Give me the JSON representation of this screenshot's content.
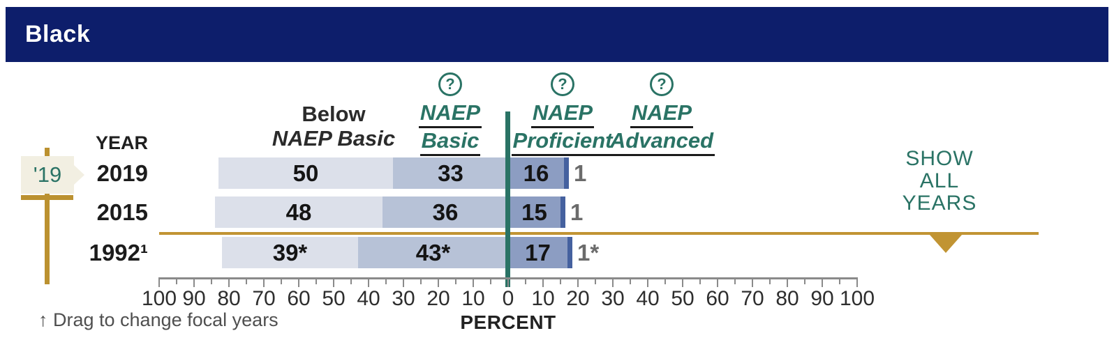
{
  "header": {
    "title": "Black"
  },
  "colors": {
    "header_navy": "#0d1e6b",
    "teal_accent": "#2a7365",
    "gold_accent": "#c19433",
    "flag_cream": "#f2efe2",
    "below_basic_bar": "#dce0ea",
    "basic_bar": "#b7c2d7",
    "proficient_bar": "#8c9dc2",
    "advanced_bar": "#45619f",
    "muted_value_text": "#6b6b6b"
  },
  "columns": {
    "year_label": "YEAR",
    "help_glyph": "?",
    "below": {
      "line1": "Below",
      "line2": "NAEP Basic"
    },
    "levels": [
      {
        "line1": "NAEP",
        "line2": "Basic"
      },
      {
        "line1": "NAEP",
        "line2": "Proficient"
      },
      {
        "line1": "NAEP",
        "line2": "Advanced"
      }
    ]
  },
  "chart_data": {
    "type": "bar",
    "subtype": "diverging-stacked-horizontal",
    "title": "Black",
    "categories": [
      "2019",
      "2015",
      "1992¹"
    ],
    "series": [
      {
        "name": "Below NAEP Basic",
        "values": [
          50,
          48,
          39
        ],
        "display": [
          "50",
          "48",
          "39*"
        ],
        "side": "left"
      },
      {
        "name": "NAEP Basic",
        "values": [
          33,
          36,
          43
        ],
        "display": [
          "33",
          "36",
          "43*"
        ],
        "side": "left"
      },
      {
        "name": "NAEP Proficient",
        "values": [
          16,
          15,
          17
        ],
        "display": [
          "16",
          "15",
          "17"
        ],
        "side": "right"
      },
      {
        "name": "NAEP Advanced",
        "values": [
          1,
          1,
          1
        ],
        "display": [
          "1",
          "1",
          "1*"
        ],
        "side": "right"
      }
    ],
    "xlabel": "PERCENT",
    "axis": {
      "range": [
        -100,
        100
      ],
      "minor_step": 5,
      "label_step": 10,
      "tick_labels": [
        "100",
        "90",
        "80",
        "70",
        "60",
        "50",
        "40",
        "30",
        "20",
        "10",
        "0",
        "10",
        "20",
        "30",
        "40",
        "50",
        "60",
        "70",
        "80",
        "90",
        "100"
      ]
    },
    "zero_line": true,
    "focal_year_marker": "'19",
    "focal_separator_after_row": 1
  },
  "show_all": {
    "line1": "SHOW",
    "line2": "ALL",
    "line3": "YEARS"
  },
  "footer": {
    "percent_label": "PERCENT",
    "drag_hint": "↑ Drag to change focal years"
  }
}
